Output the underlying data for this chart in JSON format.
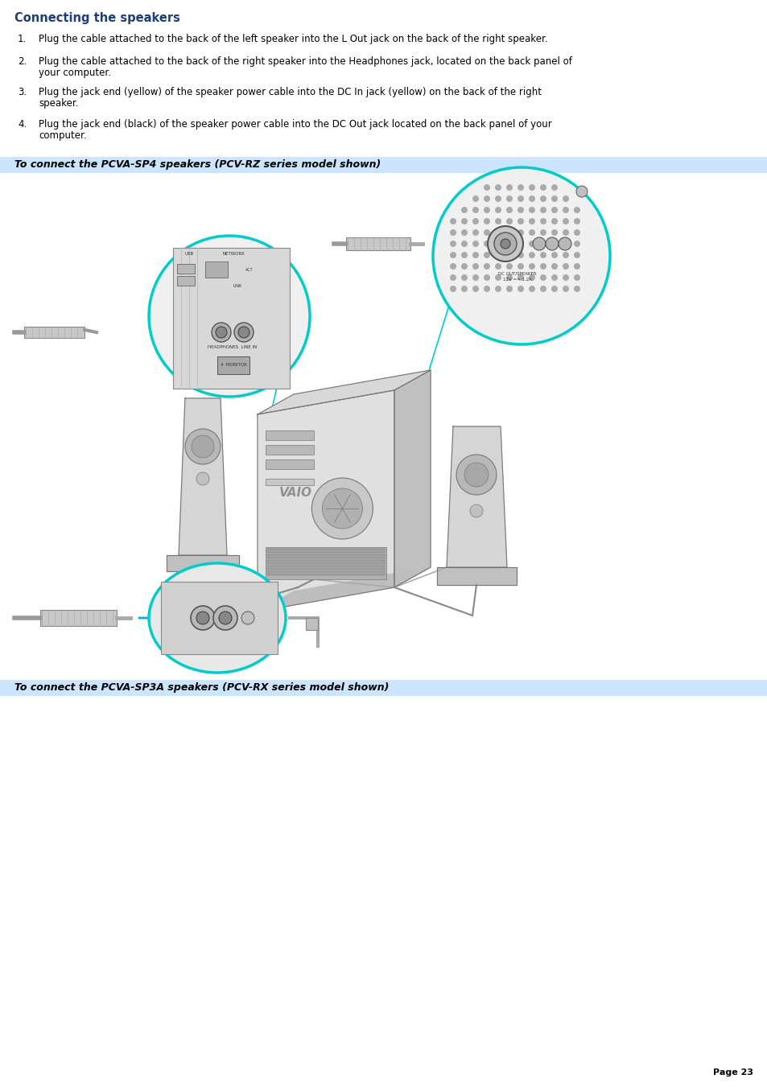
{
  "title": "Connecting the speakers",
  "title_color": "#1f3d7a",
  "title_fontsize": 10.5,
  "body_fontsize": 8.5,
  "body_color": "#000000",
  "background_color": "#ffffff",
  "items": [
    [
      "Plug the cable attached to the back of the left speaker into the L Out jack on the back of the right speaker."
    ],
    [
      "Plug the cable attached to the back of the right speaker into the Headphones jack, located on the back panel of",
      "your computer."
    ],
    [
      "Plug the jack end (yellow) of the speaker power cable into the DC In jack (yellow) on the back of the right",
      "speaker."
    ],
    [
      "Plug the jack end (black) of the speaker power cable into the DC Out jack located on the back panel of your",
      "computer."
    ]
  ],
  "banner1_text": "To connect the PCVA-SP4 speakers (PCV-RZ series model shown)",
  "banner2_text": "To connect the PCVA-SP3A speakers (PCV-RX series model shown)",
  "banner_bg": "#cce5ff",
  "banner_text_color": "#000000",
  "page_text": "Page 23",
  "page_fontsize": 8,
  "cyan_color": "#00cccc",
  "arrow_color": "#00aaee",
  "gray_light": "#d4d4d4",
  "gray_mid": "#aaaaaa",
  "gray_dark": "#777777",
  "line_color": "#888888"
}
